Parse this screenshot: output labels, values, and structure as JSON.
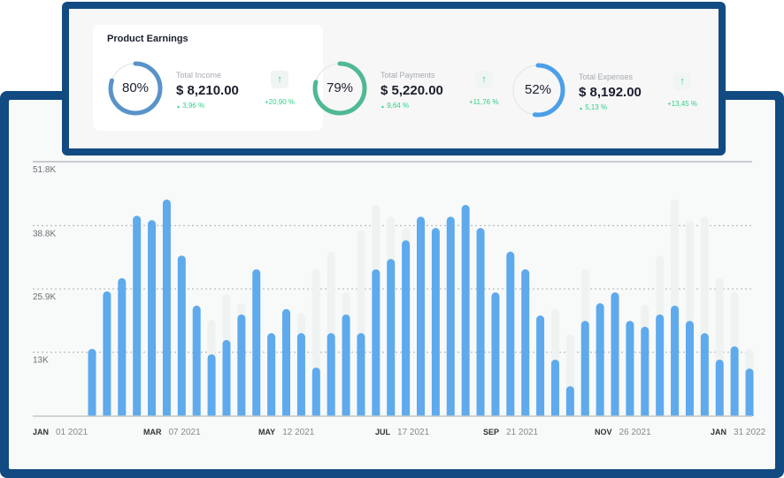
{
  "card": {
    "title": "Product Earnings",
    "kpis": [
      {
        "percent_label": "80%",
        "percent": 80,
        "label": "Total Income",
        "value": "$ 8,210.00",
        "sub_change": "3,96 %",
        "change": "+20,90 %",
        "color": "#5a93c9"
      },
      {
        "percent_label": "79%",
        "percent": 79,
        "label": "Total Payments",
        "value": "$ 5,220.00",
        "sub_change": "9,64 %",
        "change": "+11,76 %",
        "color": "#4fb992"
      },
      {
        "percent_label": "52%",
        "percent": 52,
        "label": "Total Expenses",
        "value": "$ 8,192.00",
        "sub_change": "5,13 %",
        "change": "+13,45 %",
        "color": "#4b9fe8"
      }
    ],
    "icons": {
      "arrow": "↑",
      "triangle": "▲"
    }
  },
  "chart_data": {
    "type": "bar",
    "title": "",
    "xlabel": "",
    "ylabel": "",
    "ylim": [
      0,
      51.8
    ],
    "yticks": [
      "13K",
      "25.9K",
      "38.8K",
      "51.8K"
    ],
    "ytick_values": [
      13,
      25.9,
      38.8,
      51.8
    ],
    "xticks": [
      {
        "month": "JAN",
        "date": "01 2021"
      },
      {
        "month": "MAR",
        "date": "07 2021"
      },
      {
        "month": "MAY",
        "date": "12 2021"
      },
      {
        "month": "JUL",
        "date": "17 2021"
      },
      {
        "month": "SEP",
        "date": "21 2021"
      },
      {
        "month": "NOV",
        "date": "26 2021"
      },
      {
        "month": "JAN",
        "date": "31 2022"
      }
    ],
    "grid": true,
    "series": [
      {
        "name": "primary",
        "color": "#5eaaec",
        "values": [
          13.7,
          25.4,
          28.1,
          40.8,
          39.9,
          44.1,
          32.7,
          22.5,
          12.6,
          15.5,
          20.7,
          29.9,
          16.9,
          21.8,
          16.9,
          9.9,
          16.9,
          20.7,
          16.9,
          29.9,
          32,
          35.8,
          40.6,
          38.3,
          40.6,
          43,
          38.3,
          25.2,
          33.5,
          29.9,
          20.5,
          11.5,
          6.1,
          19.4,
          23,
          25.2,
          19.4,
          18.2,
          20.7,
          22.5,
          19.4,
          16.9,
          11.5,
          14.2,
          9.7
        ]
      },
      {
        "name": "background",
        "color": "#eef3f1",
        "values": [
          0,
          0,
          0,
          0,
          0,
          0,
          0,
          0,
          19.6,
          24.8,
          23,
          0,
          0,
          0,
          20.9,
          29.9,
          33.5,
          25.2,
          37.9,
          43,
          40.6,
          38.3,
          0,
          0,
          0,
          0,
          0,
          0,
          0,
          0,
          0,
          21.8,
          16.7,
          29.9,
          0,
          0,
          0,
          22.7,
          32.7,
          44.1,
          39.8,
          40.6,
          28.1,
          25.2,
          13.7
        ]
      }
    ]
  }
}
